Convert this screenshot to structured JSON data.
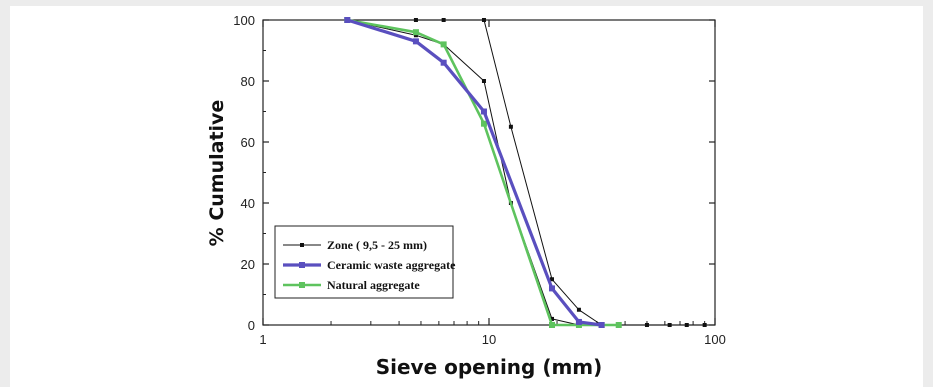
{
  "chart_data": {
    "type": "line",
    "xscale": "log",
    "xlim": [
      1,
      100
    ],
    "ylim": [
      0,
      100
    ],
    "xticks": [
      1,
      10,
      100
    ],
    "yticks": [
      0,
      20,
      40,
      60,
      80,
      100
    ],
    "xlabel": "Sieve opening (mm)",
    "ylabel": "% Cumulative",
    "grid": false,
    "legend_position": "bottom-left",
    "series": [
      {
        "name": "Zone ( 9,5 - 25 mm)",
        "color": "#111111",
        "style": "thin line, small square markers",
        "boundaries": [
          {
            "x": [
              2.36,
              4.75,
              6.3,
              9.5,
              12.5,
              19,
              25,
              31.5,
              37.5,
              50,
              63,
              75,
              90
            ],
            "y": [
              100,
              100,
              100,
              100,
              65,
              15,
              5,
              0,
              0,
              0,
              0,
              0,
              0
            ]
          },
          {
            "x": [
              2.36,
              4.75,
              6.3,
              9.5,
              12.5,
              19,
              25
            ],
            "y": [
              100,
              95,
              92,
              80,
              40,
              2,
              0
            ]
          }
        ]
      },
      {
        "name": "Ceramic waste aggregate",
        "color": "#5a4fbf",
        "style": "thick line, square markers",
        "x": [
          2.36,
          4.75,
          6.3,
          9.5,
          19,
          25,
          31.5
        ],
        "y": [
          100,
          93,
          86,
          70,
          12,
          1,
          0
        ]
      },
      {
        "name": "Natural aggregate",
        "color": "#5ec35e",
        "style": "thick line, square markers",
        "x": [
          2.36,
          4.75,
          6.3,
          9.5,
          19,
          25,
          31.5,
          37.5
        ],
        "y": [
          100,
          96,
          92,
          66,
          0,
          0,
          0,
          0
        ]
      }
    ]
  }
}
